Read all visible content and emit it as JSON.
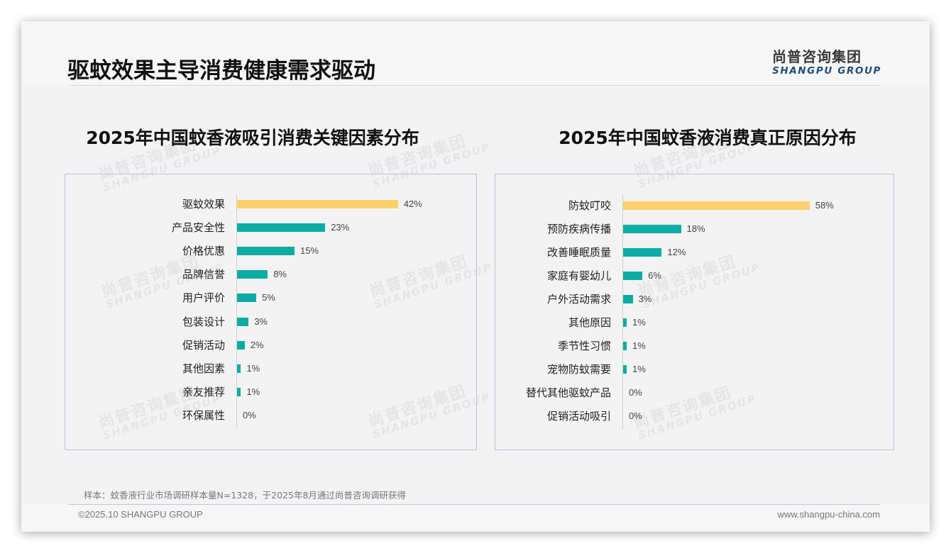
{
  "page": {
    "title": "驱蚊效果主导消费健康需求驱动",
    "logo_cn": "尚普咨询集团",
    "logo_en": "SHANGPU GROUP",
    "footnote": "样本：蚊香液行业市场调研样本量N=1328，于2025年8月通过尚普咨询调研获得",
    "copyright": "©2025.10 SHANGPU GROUP",
    "website": "www.shangpu-china.com",
    "watermark_cn": "尚普咨询集团",
    "watermark_en": "SHANGPU GROUP"
  },
  "colors": {
    "highlight_bar": "#ffd06b",
    "normal_bar": "#0aaca3",
    "panel_border": "#b9c4d2",
    "logo_en": "#1f4e79"
  },
  "chart_data": [
    {
      "type": "bar",
      "orientation": "horizontal",
      "title": "2025年中国蚊香液吸引消费关键因素分布",
      "categories": [
        "驱蚊效果",
        "产品安全性",
        "价格优惠",
        "品牌信誉",
        "用户评价",
        "包装设计",
        "促销活动",
        "其他因素",
        "亲友推荐",
        "环保属性"
      ],
      "values": [
        42,
        23,
        15,
        8,
        5,
        3,
        2,
        1,
        1,
        0
      ],
      "value_labels": [
        "42%",
        "23%",
        "15%",
        "8%",
        "5%",
        "3%",
        "2%",
        "1%",
        "1%",
        "0%"
      ],
      "unit": "%",
      "highlight_index": 0,
      "xlabel": "",
      "ylabel": "",
      "grid": false,
      "legend": "none"
    },
    {
      "type": "bar",
      "orientation": "horizontal",
      "title": "2025年中国蚊香液消费真正原因分布",
      "categories": [
        "防蚊叮咬",
        "预防疾病传播",
        "改善睡眠质量",
        "家庭有婴幼儿",
        "户外活动需求",
        "其他原因",
        "季节性习惯",
        "宠物防蚊需要",
        "替代其他驱蚊产品",
        "促销活动吸引"
      ],
      "values": [
        58,
        18,
        12,
        6,
        3,
        1,
        1,
        1,
        0,
        0
      ],
      "value_labels": [
        "58%",
        "18%",
        "12%",
        "6%",
        "3%",
        "1%",
        "1%",
        "1%",
        "0%",
        "0%"
      ],
      "unit": "%",
      "highlight_index": 0,
      "xlabel": "",
      "ylabel": "",
      "grid": false,
      "legend": "none"
    }
  ]
}
